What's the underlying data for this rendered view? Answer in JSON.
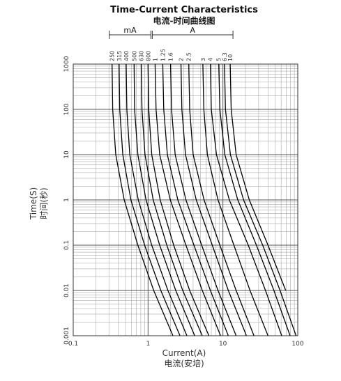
{
  "chart_data": {
    "type": "line",
    "title": "Time-Current Characteristics",
    "subtitle": "电流-时间曲线图",
    "xlabel": "Current(A)",
    "xlabel_sub": "电流(安培)",
    "ylabel": "Time(S)",
    "ylabel_sub": "时间(秒)",
    "annotations": [
      "mA",
      "A"
    ],
    "xscale": "log",
    "yscale": "log",
    "grid": true,
    "color": "#000000",
    "xlim": [
      0.1,
      100
    ],
    "xticks": [
      0.1,
      1,
      10,
      100
    ],
    "ylim": [
      0.001,
      1000
    ],
    "yticks": [
      0.001,
      0.01,
      0.1,
      1,
      10,
      100,
      1000
    ],
    "series": [
      {
        "name": "250",
        "x": [
          0.33,
          0.337,
          0.37,
          0.48,
          0.73,
          1.19,
          2.15
        ],
        "values": [
          1000,
          100,
          10,
          1,
          0.1,
          0.01,
          0.001
        ]
      },
      {
        "name": "315",
        "x": [
          0.41,
          0.418,
          0.46,
          0.59,
          0.9,
          1.48,
          2.67
        ],
        "values": [
          1000,
          100,
          10,
          1,
          0.1,
          0.01,
          0.001
        ]
      },
      {
        "name": "400",
        "x": [
          0.51,
          0.52,
          0.57,
          0.74,
          1.12,
          1.84,
          3.3
        ],
        "values": [
          1000,
          100,
          10,
          1,
          0.1,
          0.01,
          0.001
        ]
      },
      {
        "name": "500",
        "x": [
          0.65,
          0.66,
          0.73,
          0.94,
          1.43,
          2.34,
          4.2
        ],
        "values": [
          1000,
          100,
          10,
          1,
          0.1,
          0.01,
          0.001
        ]
      },
      {
        "name": "630",
        "x": [
          0.81,
          0.83,
          0.91,
          1.17,
          1.78,
          2.9,
          5.3
        ],
        "values": [
          1000,
          100,
          10,
          1,
          0.1,
          0.01,
          0.001
        ]
      },
      {
        "name": "800",
        "x": [
          1,
          1.02,
          1.12,
          1.45,
          2.2,
          3.6,
          6.5
        ],
        "values": [
          1000,
          100,
          10,
          1,
          0.1,
          0.01,
          0.001
        ]
      },
      {
        "name": "1",
        "x": [
          1.24,
          1.28,
          1.43,
          1.98,
          3.2,
          5.3,
          9.3
        ],
        "values": [
          1000,
          100,
          10,
          1,
          0.1,
          0.01,
          0.001
        ]
      },
      {
        "name": "1.25",
        "x": [
          1.57,
          1.62,
          1.81,
          2.5,
          4.1,
          6.8,
          11.8
        ],
        "values": [
          1000,
          100,
          10,
          1,
          0.1,
          0.01,
          0.001
        ]
      },
      {
        "name": "1.6",
        "x": [
          2,
          2.06,
          2.3,
          3.2,
          5.2,
          8.6,
          15
        ],
        "values": [
          1000,
          100,
          10,
          1,
          0.1,
          0.01,
          0.001
        ]
      },
      {
        "name": "2",
        "x": [
          2.75,
          2.83,
          3.16,
          4.4,
          7.2,
          11.8,
          20.6
        ],
        "values": [
          1000,
          100,
          10,
          1,
          0.1,
          0.01,
          0.001
        ]
      },
      {
        "name": "2.5",
        "x": [
          3.5,
          3.6,
          4,
          5.6,
          9.1,
          15,
          26
        ],
        "values": [
          1000,
          100,
          10,
          1,
          0.1,
          0.01,
          0.001
        ]
      },
      {
        "name": "3",
        "x": [
          5.4,
          5.56,
          6.2,
          8.6,
          14,
          23,
          40
        ],
        "values": [
          1000,
          100,
          10,
          1,
          0.1,
          0.01,
          0.001
        ]
      },
      {
        "name": "4",
        "x": [
          6.8,
          7,
          8.2,
          12.2,
          21.8,
          37,
          61
        ],
        "values": [
          1000,
          100,
          10,
          1,
          0.1,
          0.01,
          0.001
        ]
      },
      {
        "name": "5",
        "x": [
          8.8,
          9.1,
          10.6,
          15.8,
          28,
          48,
          79
        ],
        "values": [
          1000,
          100,
          10,
          1,
          0.1,
          0.01,
          0.001
        ]
      },
      {
        "name": "6.3",
        "x": [
          10.5,
          10.8,
          12.6,
          18.9,
          34,
          58,
          95
        ],
        "values": [
          1000,
          100,
          10,
          1,
          0.1,
          0.01,
          0.001
        ]
      },
      {
        "name": "10",
        "x": [
          12.5,
          12.9,
          15,
          22.5,
          40,
          69
        ],
        "values": [
          1000,
          100,
          10,
          1,
          0.1,
          0.01
        ]
      }
    ]
  }
}
